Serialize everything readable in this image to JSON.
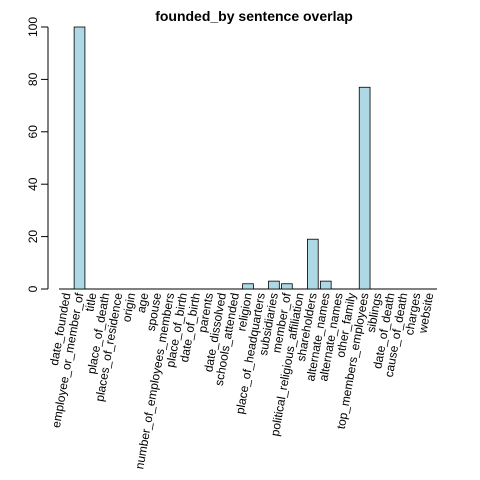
{
  "chart_data": {
    "type": "bar",
    "title": "founded_by sentence overlap",
    "xlabel": "",
    "ylabel": "",
    "ylim": [
      0,
      100
    ],
    "yticks": [
      0,
      20,
      40,
      60,
      80,
      100
    ],
    "grid": false,
    "legend": "none",
    "bar_color": "#add8e6",
    "categories": [
      "date_founded",
      "employee_or_member_of",
      "title",
      "place_of_death",
      "places_of_residence",
      "origin",
      "age",
      "spouse",
      "number_of_employees_members",
      "place_of_birth",
      "date_of_birth",
      "parents",
      "date_dissolved",
      "schools_attended",
      "religion",
      "place_of_headquarters",
      "subsidiaries",
      "member_of",
      "political_religious_affiliation",
      "shareholders",
      "alternate_names",
      "alternate_names",
      "other_family",
      "top_members_employees",
      "siblings",
      "date_of_death",
      "cause_of_death",
      "charges",
      "website"
    ],
    "values": [
      0,
      100,
      0,
      0,
      0,
      0,
      0,
      0,
      0,
      0,
      0,
      0,
      0,
      0,
      2,
      0,
      3,
      2,
      0,
      19,
      3,
      0,
      0,
      77,
      0,
      0,
      0,
      0,
      0
    ]
  }
}
